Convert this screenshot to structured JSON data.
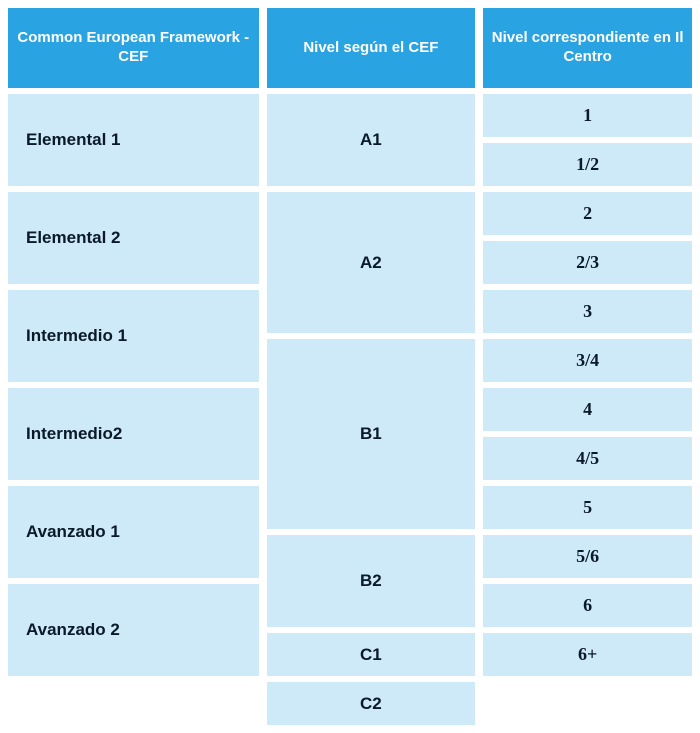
{
  "colors": {
    "header_bg": "#2aa3e2",
    "cell_bg": "#cee9f8",
    "header_text": "#ffffff",
    "cell_text": "#0a1a2a",
    "page_bg": "#ffffff"
  },
  "headers": {
    "col1": "Common European Framework - CEF",
    "col2": "Nivel según el CEF",
    "col3": "Nivel correspondiente en Il Centro"
  },
  "col1_rows": [
    "Elemental 1",
    "Elemental 2",
    "Intermedio 1",
    "Intermedio2",
    "Avanzado 1",
    "Avanzado 2"
  ],
  "col2_rows": [
    {
      "label": "A1",
      "span": "h1"
    },
    {
      "label": "A2",
      "span": "h15"
    },
    {
      "label": "B1",
      "span": "h4"
    },
    {
      "label": "B2",
      "span": "h1"
    },
    {
      "label": "C1",
      "span": "h2"
    },
    {
      "label": "C2",
      "span": "h2"
    }
  ],
  "col3_rows": [
    "1",
    "1/2",
    "2",
    "2/3",
    "3",
    "3/4",
    "4",
    "4/5",
    "5",
    "5/6",
    "6",
    "6+"
  ]
}
